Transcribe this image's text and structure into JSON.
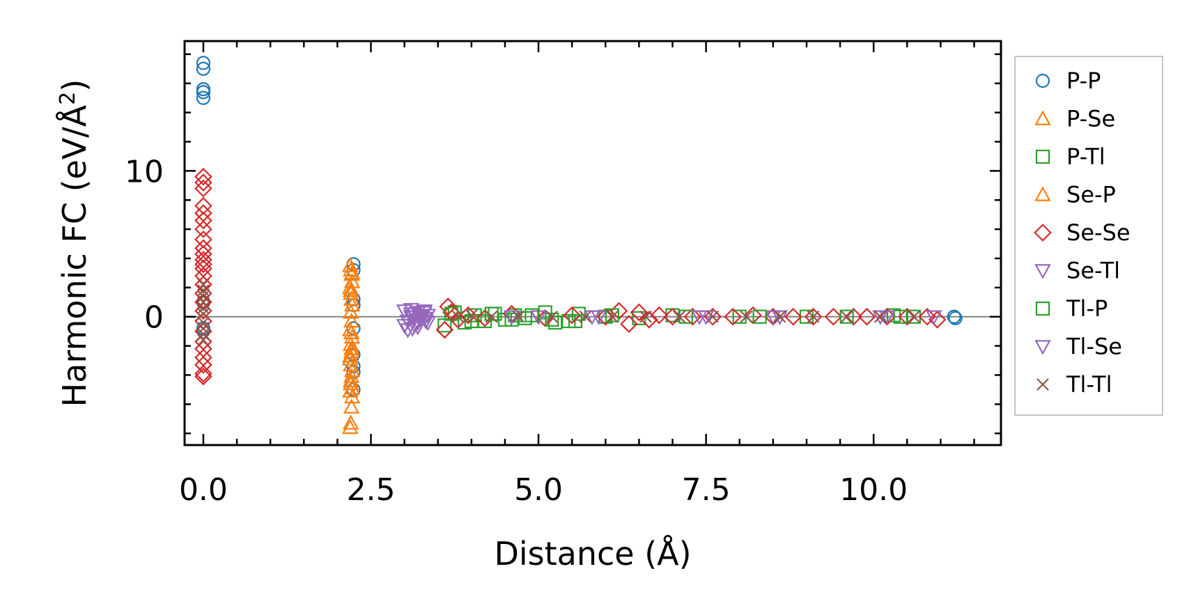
{
  "chart_data": {
    "type": "scatter",
    "title": "",
    "xlabel": "Distance (Å)",
    "ylabel": "Harmonic FC (eV/Å",
    "ylabel_sup": "2",
    "ylabel_tail": ")",
    "xlim": [
      -0.28,
      11.9
    ],
    "ylim": [
      -8.8,
      18.9
    ],
    "x_ticks": [
      0.0,
      2.5,
      5.0,
      7.5,
      10.0
    ],
    "x_tick_labels": [
      "0.0",
      "2.5",
      "5.0",
      "7.5",
      "10.0"
    ],
    "y_ticks": [
      0,
      10
    ],
    "y_tick_labels": [
      "0",
      "10"
    ],
    "zero_line": true,
    "legend_position": "outside right",
    "series": [
      {
        "name": "P-P",
        "marker": "circle",
        "color": "#1f77b4",
        "x": [
          0.0,
          0.0,
          0.0,
          0.0,
          0.0,
          0.0,
          0.0,
          2.24,
          2.24,
          2.24,
          2.24,
          2.24,
          2.24,
          2.24,
          2.24,
          2.24,
          11.2,
          11.22
        ],
        "y": [
          17.4,
          17.0,
          15.6,
          15.4,
          15.0,
          1.0,
          -0.8,
          3.6,
          3.2,
          1.2,
          0.8,
          -0.8,
          -2.6,
          -3.4,
          -3.8,
          -5.0,
          0.0,
          -0.1
        ]
      },
      {
        "name": "P-Se",
        "marker": "triangle-up",
        "color": "#ff7f0e",
        "x": [
          2.19,
          2.2,
          2.21,
          2.22,
          2.19,
          2.2,
          2.21,
          2.22,
          2.2,
          2.21,
          2.19,
          2.22,
          2.2,
          2.21,
          2.19,
          2.2,
          2.22,
          2.21,
          2.2,
          2.19,
          2.22,
          2.21,
          2.2,
          2.19,
          2.22,
          2.21
        ],
        "y": [
          3.5,
          3.2,
          2.9,
          2.4,
          2.0,
          1.6,
          1.2,
          0.8,
          0.3,
          -0.3,
          -0.9,
          -1.4,
          -1.9,
          -2.4,
          -2.9,
          -3.3,
          -3.7,
          -4.1,
          -4.6,
          -5.1,
          -5.5,
          -6.2,
          -7.3,
          -7.6,
          -4.9,
          -2.2
        ]
      },
      {
        "name": "P-Tl",
        "marker": "square",
        "color": "#2ca02c",
        "x": [
          3.6,
          3.75,
          3.9,
          4.05,
          4.2,
          4.35,
          4.5,
          4.65,
          4.8,
          5.1,
          5.25,
          5.45,
          5.6,
          6.0,
          6.5,
          7.0,
          8.0,
          9.0,
          10.3,
          10.6
        ],
        "y": [
          -0.6,
          0.3,
          -0.4,
          0.1,
          -0.3,
          0.2,
          -0.2,
          0.1,
          -0.1,
          0.3,
          -0.4,
          -0.3,
          0.2,
          0.0,
          -0.1,
          0.1,
          0.0,
          0.0,
          0.1,
          0.0
        ]
      },
      {
        "name": "Se-P",
        "marker": "triangle-up",
        "color": "#ff7f0e",
        "x": [
          2.2,
          2.21,
          2.19,
          2.22,
          2.2
        ],
        "y": [
          1.8,
          -1.1,
          -2.7,
          3.0,
          -4.4
        ]
      },
      {
        "name": "Se-Se",
        "marker": "diamond",
        "color": "#d62728",
        "x": [
          0.0,
          0.0,
          0.0,
          0.0,
          0.0,
          0.0,
          0.0,
          0.0,
          0.0,
          0.0,
          0.0,
          0.0,
          0.0,
          0.0,
          0.0,
          0.0,
          0.0,
          0.0,
          0.0,
          0.0,
          0.0,
          0.0,
          0.0,
          0.0,
          0.0,
          0.0,
          3.6,
          3.65,
          3.7,
          3.8,
          3.95,
          4.2,
          4.6,
          5.1,
          5.5,
          6.0,
          6.2,
          6.35,
          6.5,
          6.65,
          6.8,
          7.0,
          7.3,
          7.6,
          7.9,
          8.2,
          8.5,
          8.8,
          9.1,
          9.4,
          9.7,
          9.9,
          10.2,
          10.5,
          10.8,
          10.95
        ],
        "y": [
          9.6,
          9.2,
          8.8,
          7.6,
          7.1,
          6.6,
          6.0,
          5.3,
          4.7,
          4.3,
          3.9,
          3.6,
          3.3,
          2.8,
          2.2,
          1.6,
          1.0,
          0.4,
          -0.3,
          -1.0,
          -1.7,
          -2.2,
          -2.8,
          -3.3,
          -3.9,
          -4.1,
          -0.9,
          0.7,
          0.3,
          -0.2,
          0.1,
          -0.1,
          0.2,
          -0.1,
          0.1,
          0.0,
          0.4,
          -0.5,
          0.3,
          -0.2,
          0.1,
          0.0,
          0.0,
          0.0,
          0.0,
          0.1,
          0.0,
          0.0,
          0.0,
          0.0,
          0.0,
          0.0,
          0.0,
          0.0,
          0.0,
          -0.2
        ]
      },
      {
        "name": "Se-Tl",
        "marker": "triangle-down",
        "color": "#9467bd",
        "x": [
          3.0,
          3.05,
          3.1,
          3.15,
          3.2,
          3.25,
          3.3,
          3.35,
          3.05,
          3.1,
          3.15,
          3.2,
          3.25,
          3.3,
          3.0,
          3.35,
          5.0,
          5.9,
          7.5,
          8.5,
          10.1
        ],
        "y": [
          0.4,
          -0.3,
          0.5,
          -0.6,
          0.3,
          -0.2,
          0.4,
          -0.4,
          -0.9,
          0.0,
          0.2,
          -0.7,
          0.1,
          -0.1,
          -0.6,
          0.1,
          0.0,
          0.0,
          0.0,
          0.0,
          0.0
        ]
      },
      {
        "name": "Tl-P",
        "marker": "square",
        "color": "#2ca02c",
        "x": [
          3.7,
          4.0,
          4.3,
          4.6,
          4.9,
          5.2,
          5.55,
          6.1,
          7.2,
          8.3,
          9.6,
          10.4
        ],
        "y": [
          0.2,
          -0.3,
          0.2,
          -0.2,
          0.1,
          -0.2,
          -0.3,
          0.1,
          0.0,
          0.0,
          0.0,
          0.0
        ]
      },
      {
        "name": "Tl-Se",
        "marker": "triangle-down",
        "color": "#9467bd",
        "x": [
          3.1,
          3.2,
          3.3,
          3.12,
          3.22,
          3.32,
          4.6,
          5.8,
          7.4,
          8.6,
          10.2,
          10.9
        ],
        "y": [
          0.2,
          -0.4,
          0.3,
          -0.8,
          0.0,
          -0.3,
          0.0,
          0.0,
          0.0,
          0.0,
          0.0,
          0.0
        ]
      },
      {
        "name": "Tl-Tl",
        "marker": "x",
        "color": "#8c564b",
        "x": [
          0.0,
          0.0,
          0.0,
          0.0,
          0.0,
          0.0,
          0.0,
          0.0,
          0.0,
          0.0,
          3.8,
          4.0,
          4.3,
          4.7,
          5.2,
          5.7,
          6.1,
          6.6,
          7.1,
          7.6,
          8.1,
          8.6,
          9.1,
          9.6,
          10.1,
          10.6
        ],
        "y": [
          2.2,
          1.8,
          1.4,
          1.0,
          0.6,
          0.2,
          -0.4,
          -0.8,
          -1.2,
          -1.6,
          0.0,
          0.1,
          0.0,
          0.0,
          0.0,
          0.0,
          0.0,
          0.0,
          0.0,
          0.0,
          0.0,
          0.0,
          0.0,
          0.0,
          0.0,
          0.0
        ]
      }
    ]
  }
}
